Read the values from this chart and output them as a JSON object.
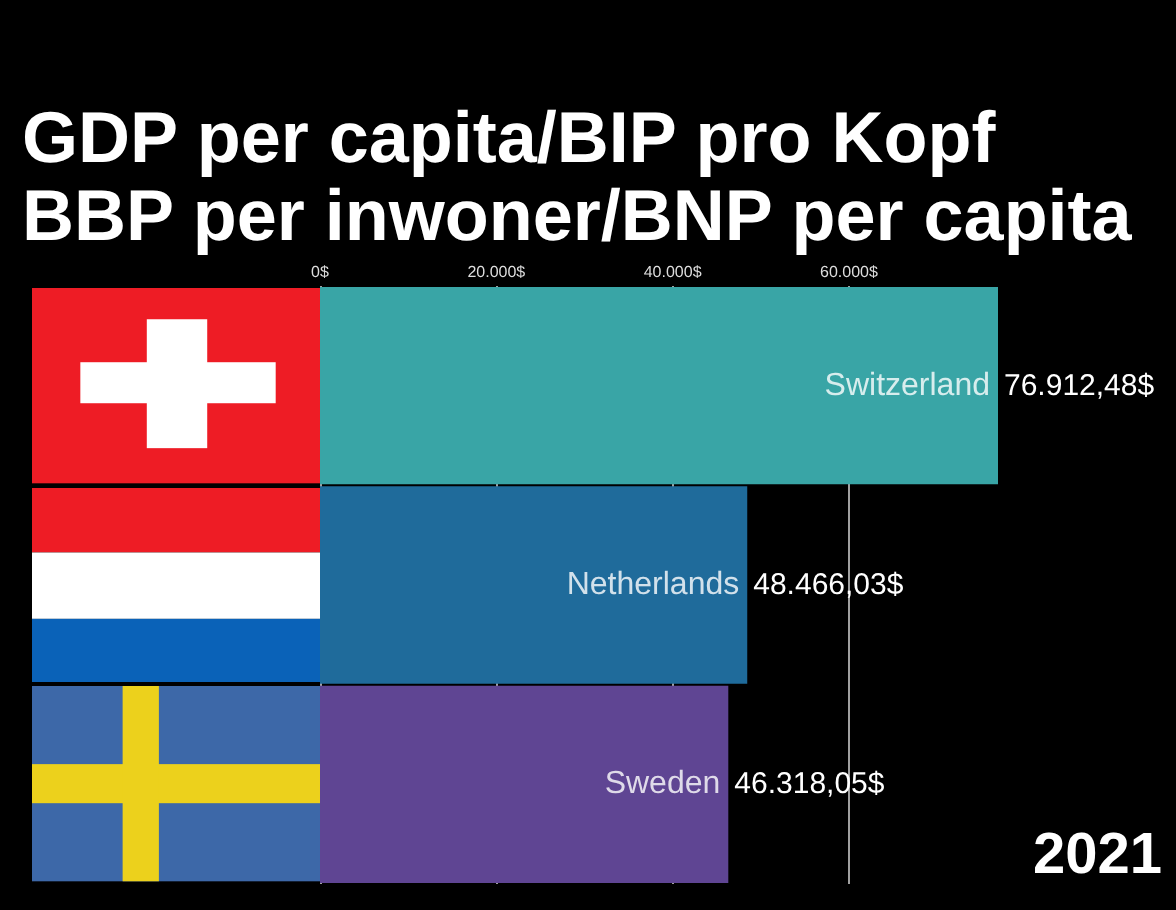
{
  "chart_data": {
    "type": "bar",
    "orientation": "horizontal",
    "title": "GDP per capita/BIP pro Kopf",
    "subtitle": "BBP per inwoner/BNP per capita",
    "categories": [
      "Switzerland",
      "Netherlands",
      "Sweden"
    ],
    "values": [
      76912.48,
      48466.03,
      46318.05
    ],
    "colors": [
      "#39a5a6",
      "#1f6b9b",
      "#5f4593"
    ],
    "value_labels": [
      "76.912,48$",
      "48.466,03$",
      "46.318,05$"
    ],
    "xlim": [
      0,
      76912.48
    ],
    "xticks": [
      {
        "value": 0,
        "label": "0$"
      },
      {
        "value": 20000,
        "label": "20.000$"
      },
      {
        "value": 40000,
        "label": "40.000$"
      },
      {
        "value": 60000,
        "label": "60.000$"
      }
    ],
    "grid": "x",
    "annotations": [
      "2021"
    ]
  }
}
